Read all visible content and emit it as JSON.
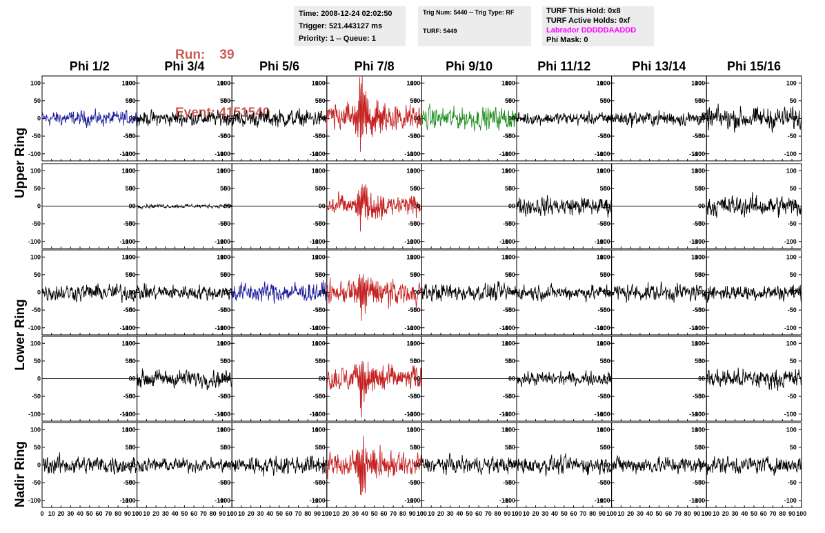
{
  "header": {
    "run_label": "Run:",
    "run_value": "39",
    "event_label": "Event:",
    "event_value": "4151540",
    "accent_color": "#cc5a55"
  },
  "info_box_1": {
    "time": "Time: 2008-12-24 02:02:50",
    "trigger": "Trigger: 521.443127 ms",
    "priority": "Priority: 1 -- Queue: 1"
  },
  "info_box_2": {
    "trig": "Trig Num: 5440 -- Trig Type: RF",
    "turf": "TURF: 5449"
  },
  "info_box_3": {
    "this_hold": "TURF This Hold: 0x8",
    "active_holds": "TURF Active Holds: 0xf",
    "labrador": "Labrador DDDDDAADDD",
    "phi_mask": "Phi Mask: 0",
    "labrador_color": "#ff00ff"
  },
  "columns": [
    "Phi 1/2",
    "Phi 3/4",
    "Phi 5/6",
    "Phi 7/8",
    "Phi 9/10",
    "Phi 11/12",
    "Phi 13/14",
    "Phi 15/16"
  ],
  "ring_labels": {
    "upper": "Upper Ring",
    "lower": "Lower Ring",
    "nadir": "Nadir Ring"
  },
  "chart_data": {
    "type": "line",
    "xlim": [
      0,
      100
    ],
    "ylim": [
      -120,
      120
    ],
    "y_ticks": [
      -100,
      -50,
      0,
      50,
      100
    ],
    "y_tick_labels": [
      "-100",
      "-50",
      "0",
      "50",
      "100"
    ],
    "x_ticks": [
      0,
      10,
      20,
      30,
      40,
      50,
      60,
      70,
      80,
      90,
      100
    ],
    "x_tick_labels": [
      "0",
      "10",
      "20",
      "30",
      "40",
      "50",
      "60",
      "70",
      "80",
      "90",
      "100"
    ],
    "colors": {
      "black": "#000000",
      "blue": "#1a1a9a",
      "red": "#c42020",
      "green": "#1e8c1e"
    },
    "grid": "off",
    "panels": [
      {
        "row": 0,
        "col": 0,
        "color": "blue",
        "amplitude": 12
      },
      {
        "row": 0,
        "col": 1,
        "color": "black",
        "amplitude": 12
      },
      {
        "row": 0,
        "col": 2,
        "color": "black",
        "amplitude": 14
      },
      {
        "row": 0,
        "col": 3,
        "color": "red",
        "amplitude": 22,
        "peak": 115
      },
      {
        "row": 0,
        "col": 4,
        "color": "green",
        "amplitude": 18
      },
      {
        "row": 0,
        "col": 5,
        "color": "black",
        "amplitude": 10
      },
      {
        "row": 0,
        "col": 6,
        "color": "black",
        "amplitude": 12
      },
      {
        "row": 0,
        "col": 7,
        "color": "black",
        "amplitude": 18
      },
      {
        "row": 1,
        "col": 0,
        "color": "black",
        "amplitude": 0
      },
      {
        "row": 1,
        "col": 1,
        "color": "black",
        "amplitude": 3
      },
      {
        "row": 1,
        "col": 2,
        "color": "black",
        "amplitude": 0
      },
      {
        "row": 1,
        "col": 3,
        "color": "red",
        "amplitude": 18,
        "peak": 75
      },
      {
        "row": 1,
        "col": 4,
        "color": "black",
        "amplitude": 0
      },
      {
        "row": 1,
        "col": 5,
        "color": "black",
        "amplitude": 15
      },
      {
        "row": 1,
        "col": 6,
        "color": "black",
        "amplitude": 0
      },
      {
        "row": 1,
        "col": 7,
        "color": "black",
        "amplitude": 17
      },
      {
        "row": 2,
        "col": 0,
        "color": "black",
        "amplitude": 14
      },
      {
        "row": 2,
        "col": 1,
        "color": "black",
        "amplitude": 12
      },
      {
        "row": 2,
        "col": 2,
        "color": "blue",
        "amplitude": 16
      },
      {
        "row": 2,
        "col": 3,
        "color": "red",
        "amplitude": 18,
        "peak": 80
      },
      {
        "row": 2,
        "col": 4,
        "color": "black",
        "amplitude": 14
      },
      {
        "row": 2,
        "col": 5,
        "color": "black",
        "amplitude": 12
      },
      {
        "row": 2,
        "col": 6,
        "color": "black",
        "amplitude": 14
      },
      {
        "row": 2,
        "col": 7,
        "color": "black",
        "amplitude": 13
      },
      {
        "row": 3,
        "col": 0,
        "color": "black",
        "amplitude": 0
      },
      {
        "row": 3,
        "col": 1,
        "color": "black",
        "amplitude": 14
      },
      {
        "row": 3,
        "col": 2,
        "color": "black",
        "amplitude": 0
      },
      {
        "row": 3,
        "col": 3,
        "color": "red",
        "amplitude": 20,
        "peak": 90
      },
      {
        "row": 3,
        "col": 4,
        "color": "black",
        "amplitude": 0
      },
      {
        "row": 3,
        "col": 5,
        "color": "black",
        "amplitude": 11
      },
      {
        "row": 3,
        "col": 6,
        "color": "black",
        "amplitude": 0
      },
      {
        "row": 3,
        "col": 7,
        "color": "black",
        "amplitude": 16
      },
      {
        "row": 4,
        "col": 0,
        "color": "black",
        "amplitude": 15
      },
      {
        "row": 4,
        "col": 1,
        "color": "black",
        "amplitude": 11
      },
      {
        "row": 4,
        "col": 2,
        "color": "black",
        "amplitude": 15
      },
      {
        "row": 4,
        "col": 3,
        "color": "red",
        "amplitude": 20,
        "peak": 100
      },
      {
        "row": 4,
        "col": 4,
        "color": "black",
        "amplitude": 13
      },
      {
        "row": 4,
        "col": 5,
        "color": "black",
        "amplitude": 14
      },
      {
        "row": 4,
        "col": 6,
        "color": "black",
        "amplitude": 14
      },
      {
        "row": 4,
        "col": 7,
        "color": "black",
        "amplitude": 14
      }
    ]
  }
}
